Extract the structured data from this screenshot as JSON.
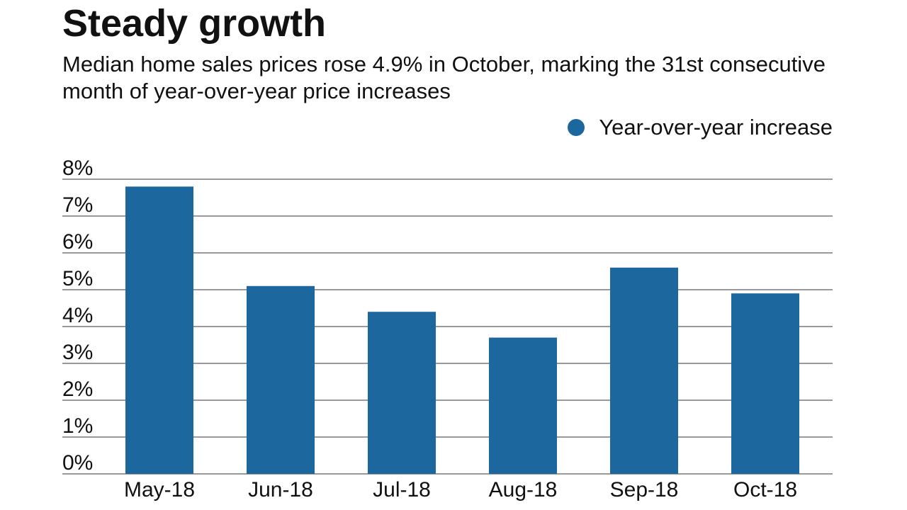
{
  "chart_data": {
    "type": "bar",
    "title": "Steady growth",
    "subtitle": "Median home sales prices rose 4.9% in October, marking the 31st consecutive month of year-over-year price increases",
    "categories": [
      "May-18",
      "Jun-18",
      "Jul-18",
      "Aug-18",
      "Sep-18",
      "Oct-18"
    ],
    "series": [
      {
        "name": "Year-over-year increase",
        "values": [
          7.8,
          5.1,
          4.4,
          3.7,
          5.6,
          4.9
        ]
      }
    ],
    "ylim": [
      0,
      8
    ],
    "yticks": [
      "0%",
      "1%",
      "2%",
      "3%",
      "4%",
      "5%",
      "6%",
      "7%",
      "8%"
    ],
    "xlabel": "",
    "ylabel": "",
    "grid": true,
    "legend": "top-right",
    "colors": {
      "bar": "#1b679e",
      "grid": "#333333"
    }
  }
}
